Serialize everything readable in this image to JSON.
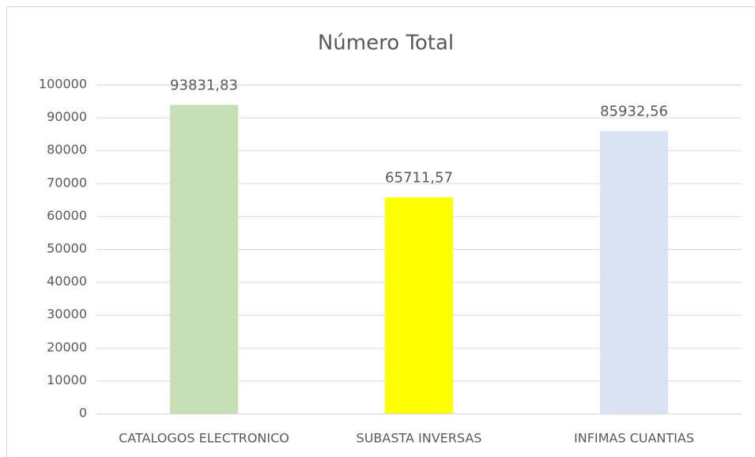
{
  "chart_data": {
    "type": "bar",
    "title": "Número Total",
    "categories": [
      "CATALOGOS ELECTRONICO",
      "SUBASTA INVERSAS",
      "INFIMAS CUANTIAS"
    ],
    "values": [
      93831.83,
      65711.57,
      85932.56
    ],
    "value_labels": [
      "93831,83",
      "65711,57",
      "85932,56"
    ],
    "colors": [
      "#c5e0b4",
      "#ffff00",
      "#dae3f3"
    ],
    "ylim": [
      0,
      100000
    ],
    "yticks": [
      0,
      10000,
      20000,
      30000,
      40000,
      50000,
      60000,
      70000,
      80000,
      90000,
      100000
    ],
    "grid": true
  }
}
